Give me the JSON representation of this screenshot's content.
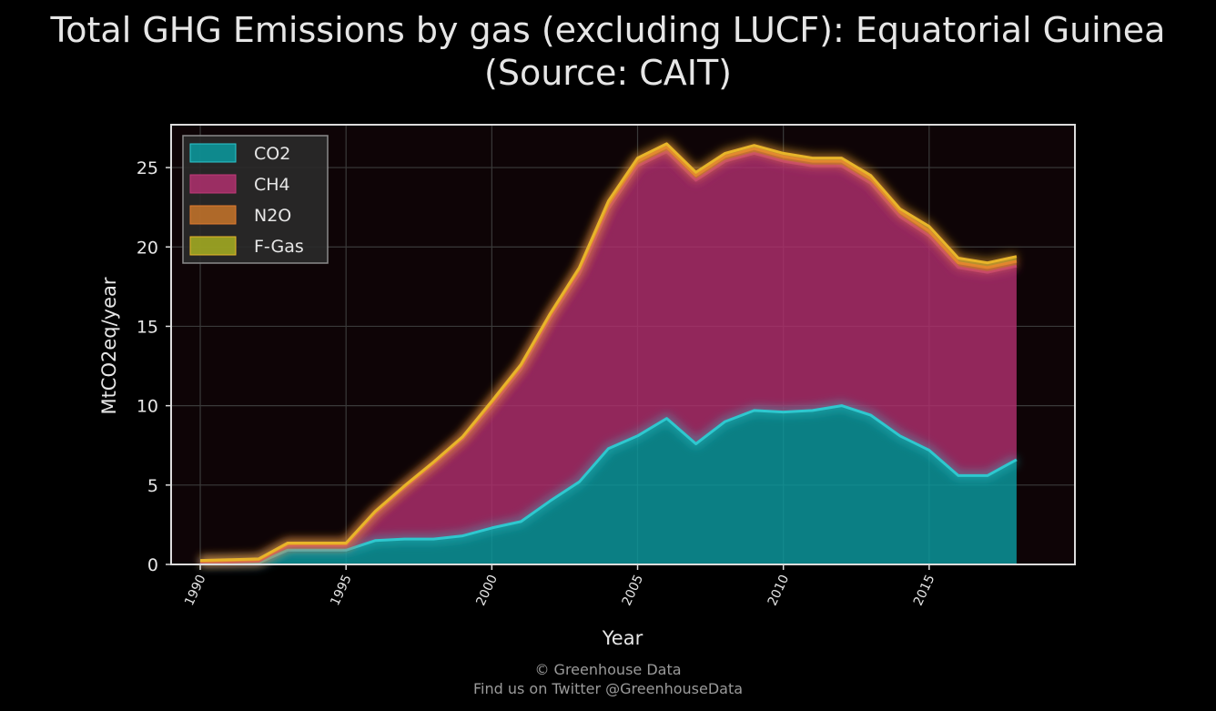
{
  "chart_data": {
    "type": "area",
    "stacked": true,
    "title": "Total GHG Emissions by gas (excluding LUCF): Equatorial Guinea",
    "subtitle": "(Source: CAIT)",
    "xlabel": "Year",
    "ylabel": "MtCO2eq/year",
    "xlim": [
      1989,
      2020
    ],
    "ylim": [
      0,
      27.7
    ],
    "xticks": [
      1990,
      1995,
      2000,
      2005,
      2010,
      2015
    ],
    "yticks": [
      0,
      5,
      10,
      15,
      20,
      25
    ],
    "grid": true,
    "legend_position": "top-left",
    "x": [
      1990,
      1991,
      1992,
      1993,
      1994,
      1995,
      1996,
      1997,
      1998,
      1999,
      2000,
      2001,
      2002,
      2003,
      2004,
      2005,
      2006,
      2007,
      2008,
      2009,
      2010,
      2011,
      2012,
      2013,
      2014,
      2015,
      2016,
      2017,
      2018
    ],
    "series": [
      {
        "name": "CO2",
        "color": "#0b9ba0",
        "line_color": "#2ec8cf",
        "values": [
          0.1,
          0.1,
          0.1,
          0.9,
          0.9,
          0.9,
          1.5,
          1.6,
          1.6,
          1.8,
          2.3,
          2.7,
          4.0,
          5.2,
          7.3,
          8.1,
          9.2,
          7.6,
          9.0,
          9.7,
          9.6,
          9.7,
          10.0,
          9.4,
          8.1,
          7.2,
          5.6,
          5.6,
          6.6
        ]
      },
      {
        "name": "CH4",
        "color": "#b0306e",
        "line_color": "#c03a7a",
        "values": [
          0.05,
          0.05,
          0.1,
          0.3,
          0.3,
          0.3,
          1.7,
          3.2,
          4.7,
          6.1,
          7.7,
          9.6,
          11.5,
          13.1,
          15.1,
          17.0,
          16.8,
          16.6,
          16.4,
          16.2,
          15.8,
          15.4,
          15.1,
          14.6,
          13.8,
          13.5,
          13.1,
          12.8,
          12.2
        ]
      },
      {
        "name": "N2O",
        "color": "#c8762a",
        "line_color": "#e07a2f",
        "values": [
          0.05,
          0.1,
          0.1,
          0.1,
          0.1,
          0.1,
          0.1,
          0.1,
          0.1,
          0.1,
          0.2,
          0.2,
          0.2,
          0.3,
          0.3,
          0.3,
          0.3,
          0.3,
          0.3,
          0.3,
          0.3,
          0.3,
          0.3,
          0.3,
          0.3,
          0.3,
          0.3,
          0.3,
          0.3
        ]
      },
      {
        "name": "F-Gas",
        "color": "#a8b022",
        "line_color": "#e8b52a",
        "values": [
          0.05,
          0.05,
          0.05,
          0.05,
          0.05,
          0.05,
          0.05,
          0.05,
          0.05,
          0.05,
          0.1,
          0.1,
          0.1,
          0.1,
          0.2,
          0.2,
          0.2,
          0.2,
          0.2,
          0.2,
          0.2,
          0.2,
          0.2,
          0.2,
          0.2,
          0.3,
          0.3,
          0.3,
          0.3
        ]
      }
    ]
  },
  "credits": {
    "line1": "© Greenhouse Data",
    "line2": "Find us on Twitter @GreenhouseData"
  }
}
